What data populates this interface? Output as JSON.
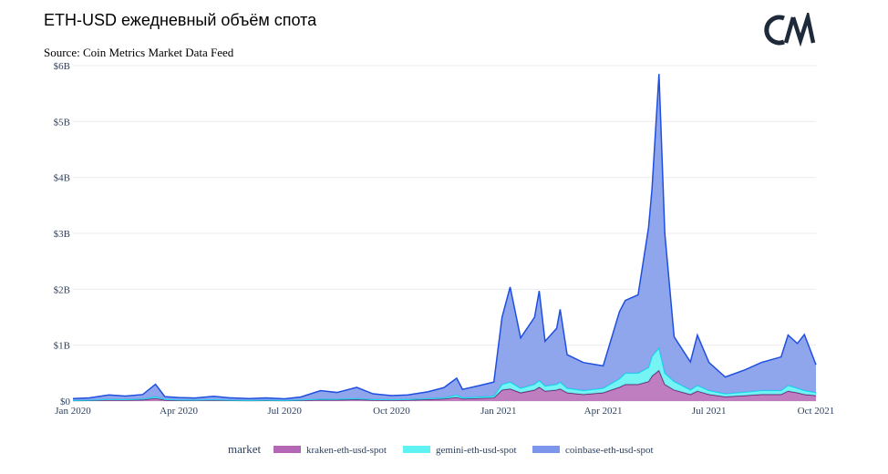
{
  "header": {
    "title": "ETH-USD ежедневный объём спота",
    "source": "Source: Coin Metrics Market Data Feed"
  },
  "logo": {
    "icon": "coin-metrics-logo",
    "text": "CM"
  },
  "chart_data": {
    "type": "area",
    "stacked": true,
    "x": [
      "2020-01-01",
      "2020-01-15",
      "2020-02-01",
      "2020-02-15",
      "2020-03-01",
      "2020-03-12",
      "2020-03-20",
      "2020-04-01",
      "2020-04-15",
      "2020-05-01",
      "2020-05-15",
      "2020-06-01",
      "2020-06-15",
      "2020-07-01",
      "2020-07-15",
      "2020-08-01",
      "2020-08-15",
      "2020-09-01",
      "2020-09-15",
      "2020-10-01",
      "2020-10-15",
      "2020-11-01",
      "2020-11-15",
      "2020-11-26",
      "2020-12-01",
      "2020-12-15",
      "2020-12-28",
      "2021-01-04",
      "2021-01-11",
      "2021-01-20",
      "2021-02-01",
      "2021-02-05",
      "2021-02-10",
      "2021-02-20",
      "2021-02-23",
      "2021-03-01",
      "2021-03-15",
      "2021-04-01",
      "2021-04-15",
      "2021-04-20",
      "2021-05-01",
      "2021-05-10",
      "2021-05-13",
      "2021-05-19",
      "2021-05-24",
      "2021-06-01",
      "2021-06-15",
      "2021-06-21",
      "2021-07-01",
      "2021-07-15",
      "2021-08-01",
      "2021-08-15",
      "2021-09-01",
      "2021-09-07",
      "2021-09-15",
      "2021-09-21",
      "2021-10-01"
    ],
    "series": [
      {
        "name": "kraken-eth-usd-spot",
        "color": "#b467b4",
        "values": [
          0.01,
          0.012,
          0.02,
          0.02,
          0.025,
          0.05,
          0.02,
          0.015,
          0.014,
          0.018,
          0.012,
          0.01,
          0.012,
          0.01,
          0.015,
          0.025,
          0.022,
          0.03,
          0.02,
          0.018,
          0.02,
          0.03,
          0.04,
          0.07,
          0.04,
          0.05,
          0.06,
          0.2,
          0.22,
          0.15,
          0.2,
          0.25,
          0.18,
          0.2,
          0.22,
          0.15,
          0.12,
          0.15,
          0.25,
          0.3,
          0.3,
          0.35,
          0.45,
          0.55,
          0.3,
          0.2,
          0.12,
          0.18,
          0.12,
          0.08,
          0.1,
          0.12,
          0.12,
          0.18,
          0.15,
          0.12,
          0.1
        ]
      },
      {
        "name": "gemini-eth-usd-spot",
        "color": "#5ef2f2",
        "values": [
          0.005,
          0.006,
          0.01,
          0.01,
          0.012,
          0.03,
          0.01,
          0.008,
          0.007,
          0.008,
          0.006,
          0.005,
          0.006,
          0.005,
          0.008,
          0.012,
          0.012,
          0.015,
          0.01,
          0.009,
          0.01,
          0.015,
          0.02,
          0.04,
          0.02,
          0.025,
          0.03,
          0.1,
          0.12,
          0.08,
          0.1,
          0.12,
          0.09,
          0.1,
          0.12,
          0.08,
          0.07,
          0.08,
          0.15,
          0.2,
          0.2,
          0.25,
          0.35,
          0.4,
          0.2,
          0.15,
          0.08,
          0.1,
          0.07,
          0.05,
          0.06,
          0.07,
          0.07,
          0.1,
          0.08,
          0.07,
          0.05
        ]
      },
      {
        "name": "coinbase-eth-usd-spot",
        "color": "#7b96ea",
        "values": [
          0.03,
          0.04,
          0.08,
          0.06,
          0.08,
          0.22,
          0.05,
          0.04,
          0.035,
          0.06,
          0.04,
          0.03,
          0.04,
          0.025,
          0.05,
          0.15,
          0.12,
          0.2,
          0.1,
          0.07,
          0.08,
          0.12,
          0.18,
          0.3,
          0.15,
          0.2,
          0.25,
          1.2,
          1.7,
          0.9,
          1.2,
          1.6,
          0.8,
          1.0,
          1.3,
          0.6,
          0.5,
          0.4,
          1.2,
          1.3,
          1.4,
          2.5,
          3.0,
          4.9,
          2.5,
          0.8,
          0.5,
          0.9,
          0.5,
          0.3,
          0.4,
          0.5,
          0.6,
          0.9,
          0.8,
          1.0,
          0.5
        ]
      }
    ],
    "xticks": [
      "Jan 2020",
      "Apr 2020",
      "Jul 2020",
      "Oct 2020",
      "Jan 2021",
      "Apr 2021",
      "Jul 2021",
      "Oct 2021"
    ],
    "xtick_dates": [
      "2020-01-01",
      "2020-04-01",
      "2020-07-01",
      "2020-10-01",
      "2021-01-01",
      "2021-04-01",
      "2021-07-01",
      "2021-10-01"
    ],
    "yticks": [
      "$0",
      "$1B",
      "$2B",
      "$3B",
      "$4B",
      "$5B",
      "$6B"
    ],
    "ytick_values": [
      0,
      1,
      2,
      3,
      4,
      5,
      6
    ],
    "ylim": [
      0,
      6
    ],
    "xlim": [
      "2020-01-01",
      "2021-10-01"
    ],
    "grid": true,
    "legend": {
      "title": "market",
      "position": "bottom"
    }
  }
}
